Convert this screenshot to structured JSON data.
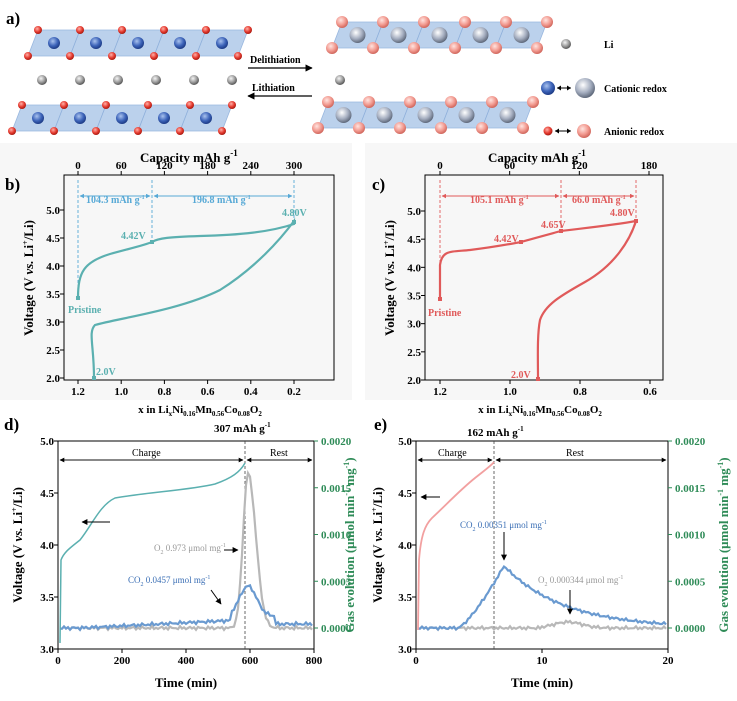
{
  "panel_a": {
    "label": "a)",
    "arrow_top": "Delithiation",
    "arrow_bottom": "Lithiation",
    "legend": [
      {
        "text": "Li",
        "icon": "li-atom-icon",
        "color": "#7a7a7a"
      },
      {
        "text": "Cationic redox",
        "icon": "cationic-redox-icon",
        "color": "#3b63b8"
      },
      {
        "text": "Anionic redox",
        "icon": "anionic-redox-icon",
        "color": "#e23a3a"
      }
    ]
  },
  "panel_b": {
    "label": "b)",
    "top_axis_title": "Capacity mAh g",
    "top_axis_sup": "-1",
    "top_ticks": [
      "0",
      "60",
      "120",
      "180",
      "240",
      "300"
    ],
    "y_ticks": [
      "2.0",
      "2.5",
      "3.0",
      "3.5",
      "4.0",
      "4.5",
      "5.0"
    ],
    "x_ticks": [
      "1.2",
      "1.0",
      "0.8",
      "0.6",
      "0.4",
      "0.2"
    ],
    "ylabel_parts": [
      "Voltage (V ",
      "vs.",
      " Li",
      "+",
      "/Li)"
    ],
    "xlabel_parts": [
      "x in Li",
      "x",
      "Ni",
      "0.16",
      "Mn",
      "0.56",
      "Co",
      "0.08",
      "O",
      "2"
    ],
    "annotations": [
      "104.3 mAh g",
      "196.8 mAh g"
    ],
    "annotation_sup": "-1",
    "points": [
      "4.42V",
      "4.80V",
      "Pristine",
      "2.0V"
    ],
    "color": "#5bb0b0"
  },
  "panel_c": {
    "label": "c)",
    "top_axis_title": "Capacity mAh g",
    "top_axis_sup": "-1",
    "top_ticks": [
      "0",
      "60",
      "120",
      "180"
    ],
    "y_ticks": [
      "2.0",
      "2.5",
      "3.0",
      "3.5",
      "4.0",
      "4.5",
      "5.0"
    ],
    "x_ticks": [
      "1.2",
      "1.0",
      "0.8",
      "0.6"
    ],
    "ylabel_parts": [
      "Voltage (V ",
      "vs.",
      " Li",
      "+",
      "/Li)"
    ],
    "xlabel_parts": [
      "x in Li",
      "x",
      "Ni",
      "0.16",
      "Mn",
      "0.56",
      "Co",
      "0.08",
      "O",
      "2"
    ],
    "annotations": [
      "105.1 mAh g",
      "66.0 mAh g"
    ],
    "annotation_sup": "-1",
    "points": [
      "4.42V",
      "4.65V",
      "4.80V",
      "Pristine",
      "2.0V"
    ],
    "color": "#e05a5a"
  },
  "panel_d": {
    "label": "d)",
    "capacity_label": "307 mAh g",
    "capacity_sup": "-1",
    "region_labels": [
      "Charge",
      "Rest"
    ],
    "y_left_ticks": [
      "3.0",
      "3.5",
      "4.0",
      "4.5",
      "5.0"
    ],
    "y_right_ticks": [
      "0.0000",
      "0.0005",
      "0.0010",
      "0.0015",
      "0.0020"
    ],
    "x_ticks": [
      "0",
      "200",
      "400",
      "600",
      "800"
    ],
    "xlabel": "Time (min)",
    "ylabel_parts": [
      "Voltage (V ",
      "vs.",
      " Li",
      "+",
      "/Li)"
    ],
    "yright_label": "Gas evolution (μmol min",
    "yright_sup1": "-1",
    "yright_mid": " mg",
    "yright_sup2": "-1",
    "yright_end": ")",
    "o2_label": "O",
    "o2_sub": "2",
    "o2_value": " 0.973 μmol mg",
    "co2_label": "CO",
    "co2_sub": "2",
    "co2_value": " 0.0457 μmol mg",
    "unit_sup": "-1"
  },
  "panel_e": {
    "label": "e)",
    "capacity_label": "162 mAh g",
    "capacity_sup": "-1",
    "region_labels": [
      "Charge",
      "Rest"
    ],
    "y_left_ticks": [
      "3.0",
      "3.5",
      "4.0",
      "4.5",
      "5.0"
    ],
    "y_right_ticks": [
      "0.0000",
      "0.0005",
      "0.0010",
      "0.0015",
      "0.0020"
    ],
    "x_ticks": [
      "0",
      "10",
      "20"
    ],
    "xlabel": "Time (min)",
    "ylabel_parts": [
      "Voltage (V ",
      "vs.",
      " Li",
      "+",
      "/Li)"
    ],
    "yright_label": "Gas evolution (μmol min",
    "yright_sup1": "-1",
    "yright_mid": " mg",
    "yright_sup2": "-1",
    "yright_end": ")",
    "o2_label": "O",
    "o2_sub": "2",
    "o2_value": " 0.000344 μmol mg",
    "co2_label": "CO",
    "co2_sub": "2",
    "co2_value": " 0.00351 μmol mg",
    "unit_sup": "-1"
  },
  "colors": {
    "teal": "#5bb0b0",
    "red": "#e05a5a",
    "pink": "#f2a0a0",
    "gray": "#b8b8b8",
    "blue": "#6a9ad0",
    "green_axis": "#2e8b57",
    "cyan_dash": "#57a9d6"
  }
}
